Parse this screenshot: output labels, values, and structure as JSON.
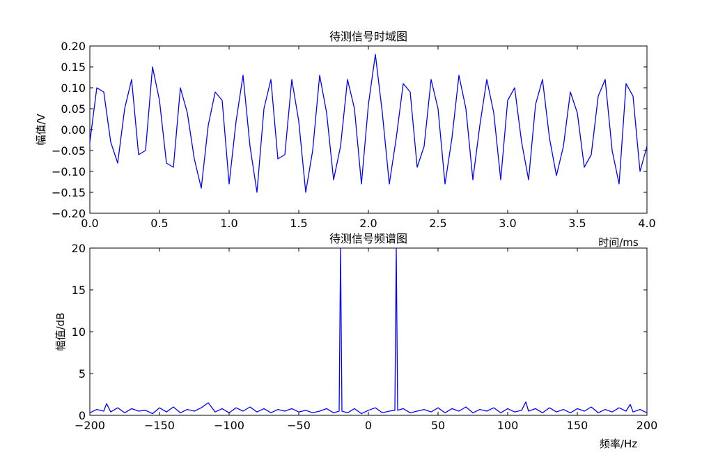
{
  "chart_data": [
    {
      "type": "line",
      "title": "待测信号时域图",
      "xlabel": "时间/ms",
      "ylabel": "幅值/V",
      "xlim": [
        0.0,
        4.0
      ],
      "ylim": [
        -0.2,
        0.2
      ],
      "xticks": [
        "0.0",
        "0.5",
        "1.0",
        "1.5",
        "2.0",
        "2.5",
        "3.0",
        "3.5",
        "4.0"
      ],
      "yticks": [
        "−0.20",
        "−0.15",
        "−0.10",
        "−0.05",
        "0.00",
        "0.05",
        "0.10",
        "0.15",
        "0.20"
      ],
      "grid": false,
      "line_color": "#0000ff",
      "x": [
        0.0,
        0.05,
        0.1,
        0.15,
        0.2,
        0.25,
        0.3,
        0.35,
        0.4,
        0.45,
        0.5,
        0.55,
        0.6,
        0.65,
        0.7,
        0.75,
        0.8,
        0.85,
        0.9,
        0.95,
        1.0,
        1.05,
        1.1,
        1.15,
        1.2,
        1.25,
        1.3,
        1.35,
        1.4,
        1.45,
        1.5,
        1.55,
        1.6,
        1.65,
        1.7,
        1.75,
        1.8,
        1.85,
        1.9,
        1.95,
        2.0,
        2.05,
        2.1,
        2.15,
        2.2,
        2.25,
        2.3,
        2.35,
        2.4,
        2.45,
        2.5,
        2.55,
        2.6,
        2.65,
        2.7,
        2.75,
        2.8,
        2.85,
        2.9,
        2.95,
        3.0,
        3.05,
        3.1,
        3.15,
        3.2,
        3.25,
        3.3,
        3.35,
        3.4,
        3.45,
        3.5,
        3.55,
        3.6,
        3.65,
        3.7,
        3.75,
        3.8,
        3.85,
        3.9,
        3.95,
        4.0
      ],
      "values": [
        -0.03,
        0.1,
        0.09,
        -0.03,
        -0.08,
        0.05,
        0.12,
        -0.06,
        -0.05,
        0.15,
        0.07,
        -0.08,
        -0.09,
        0.1,
        0.04,
        -0.07,
        -0.14,
        0.01,
        0.09,
        0.07,
        -0.13,
        0.02,
        0.13,
        -0.04,
        -0.15,
        0.05,
        0.12,
        -0.07,
        -0.06,
        0.12,
        0.02,
        -0.15,
        -0.05,
        0.13,
        0.04,
        -0.12,
        -0.04,
        0.12,
        0.05,
        -0.13,
        0.06,
        0.18,
        0.04,
        -0.13,
        -0.02,
        0.11,
        0.09,
        -0.09,
        -0.04,
        0.12,
        0.05,
        -0.13,
        -0.02,
        0.13,
        0.05,
        -0.12,
        0.01,
        0.12,
        0.04,
        -0.12,
        0.07,
        0.1,
        -0.03,
        -0.12,
        0.06,
        0.12,
        -0.02,
        -0.11,
        -0.04,
        0.09,
        0.04,
        -0.09,
        -0.06,
        0.08,
        0.12,
        -0.05,
        -0.13,
        0.11,
        0.08,
        -0.1,
        -0.04
      ]
    },
    {
      "type": "line",
      "title": "待测信号频谱图",
      "xlabel": "频率/Hz",
      "ylabel": "幅值/dB",
      "xlim": [
        -200,
        200
      ],
      "ylim": [
        0,
        20
      ],
      "xticks": [
        "−200",
        "−150",
        "−100",
        "−50",
        "0",
        "50",
        "100",
        "150",
        "200"
      ],
      "yticks": [
        "0",
        "5",
        "10",
        "15",
        "20"
      ],
      "grid": false,
      "line_color": "#0000ff",
      "x": [
        -200,
        -195,
        -190,
        -188,
        -185,
        -180,
        -175,
        -170,
        -165,
        -160,
        -155,
        -150,
        -145,
        -140,
        -135,
        -130,
        -125,
        -120,
        -115,
        -110,
        -105,
        -100,
        -95,
        -90,
        -85,
        -80,
        -75,
        -70,
        -65,
        -60,
        -55,
        -50,
        -45,
        -40,
        -35,
        -30,
        -25,
        -21,
        -20,
        -19,
        -15,
        -10,
        -5,
        0,
        5,
        10,
        15,
        19,
        20,
        21,
        25,
        30,
        35,
        40,
        45,
        50,
        55,
        60,
        65,
        70,
        75,
        80,
        85,
        90,
        95,
        100,
        105,
        110,
        113,
        115,
        120,
        125,
        130,
        135,
        140,
        145,
        150,
        155,
        160,
        165,
        170,
        175,
        180,
        185,
        188,
        190,
        195,
        200
      ],
      "values": [
        0.3,
        0.7,
        0.5,
        1.4,
        0.4,
        0.9,
        0.3,
        0.8,
        0.5,
        0.6,
        0.2,
        0.9,
        0.4,
        1.0,
        0.3,
        0.7,
        0.5,
        0.9,
        1.5,
        0.4,
        0.8,
        0.3,
        0.9,
        0.5,
        1.0,
        0.4,
        0.8,
        0.3,
        0.7,
        0.5,
        0.8,
        0.4,
        0.6,
        0.3,
        0.5,
        0.8,
        0.3,
        0.5,
        20.0,
        0.5,
        0.3,
        0.8,
        0.2,
        0.6,
        0.9,
        0.3,
        0.5,
        0.6,
        20.0,
        0.6,
        0.8,
        0.3,
        0.5,
        0.7,
        0.4,
        0.9,
        0.3,
        0.8,
        0.5,
        1.0,
        0.3,
        0.7,
        0.5,
        0.9,
        0.3,
        0.8,
        0.4,
        0.6,
        1.6,
        0.5,
        0.8,
        0.3,
        0.9,
        0.4,
        0.7,
        0.3,
        0.8,
        0.5,
        1.0,
        0.3,
        0.7,
        0.4,
        0.9,
        0.5,
        1.3,
        0.4,
        0.7,
        0.3
      ]
    }
  ]
}
